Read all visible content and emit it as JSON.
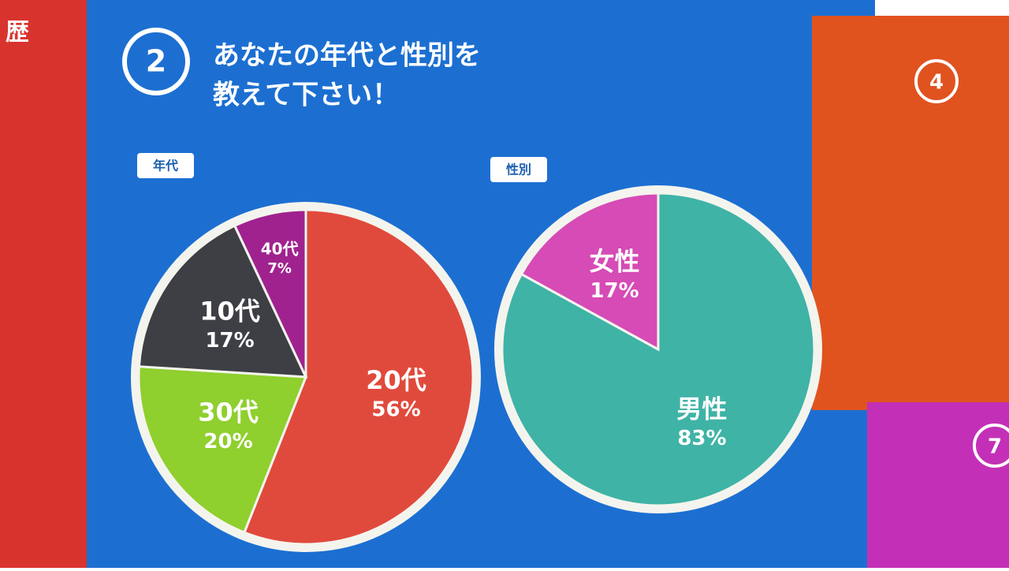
{
  "page": {
    "side_text": "歴",
    "question_number": "2",
    "title_lines": [
      "あなたの年代と性別を",
      "教えて下さい！"
    ],
    "other_numbers": [
      "4",
      "7"
    ]
  },
  "chart_data": [
    {
      "type": "pie",
      "title": "年代",
      "categories": [
        "20代",
        "30代",
        "10代",
        "40代"
      ],
      "values": [
        56,
        20,
        17,
        7
      ],
      "value_labels": [
        "56%",
        "20%",
        "17%",
        "7%"
      ],
      "colors": [
        "#e04a3c",
        "#8fcf2e",
        "#3e3f45",
        "#a0228f"
      ]
    },
    {
      "type": "pie",
      "title": "性別",
      "categories": [
        "男性",
        "女性"
      ],
      "values": [
        83,
        17
      ],
      "value_labels": [
        "83%",
        "17%"
      ],
      "colors": [
        "#3fb3a6",
        "#d64bb5"
      ]
    }
  ]
}
